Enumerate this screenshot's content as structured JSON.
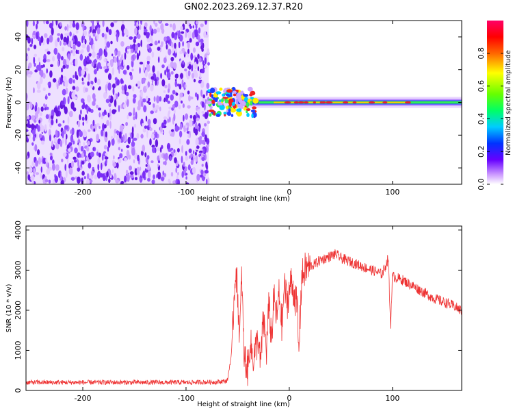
{
  "title": "GN02.2023.269.12.37.R20",
  "colors": {
    "snr_line": "#ee3333",
    "noise_purple": "#6a22dd",
    "axis": "#000000",
    "background": "#ffffff"
  },
  "chart_data": [
    {
      "type": "heatmap",
      "name": "spectrogram",
      "xlabel": "Height of straight line (km)",
      "ylabel": "Frequency (Hz)",
      "xlim": [
        -255,
        167
      ],
      "ylim": [
        -50,
        50
      ],
      "xticks": [
        -200,
        -100,
        0,
        100
      ],
      "yticks": [
        -40,
        -20,
        0,
        20,
        40
      ],
      "xtick_labels": [
        "-200",
        "-100",
        "0",
        "100"
      ],
      "ytick_labels": [
        "-40",
        "-20",
        "0",
        "20",
        "40"
      ],
      "noise_region_x": [
        -255,
        -78
      ],
      "signal_center_hz": 0,
      "colorbar": {
        "label": "Normalized spectral amplitude",
        "range": [
          0,
          1
        ],
        "ticks": [
          0.0,
          0.2,
          0.4,
          0.6,
          0.8
        ],
        "tick_labels": [
          "0.0",
          "0.2",
          "0.4",
          "0.6",
          "0.8"
        ],
        "colormap": [
          "#ffffff",
          "#cc99ff",
          "#6600ff",
          "#0033ff",
          "#00ccff",
          "#00ff66",
          "#66ff00",
          "#ffff00",
          "#ff6600",
          "#ff0000",
          "#ff0066"
        ]
      }
    },
    {
      "type": "line",
      "name": "snr",
      "xlabel": "Height of straight line (km)",
      "ylabel": "SNR (10 * v/v)",
      "xlim": [
        -255,
        167
      ],
      "ylim": [
        0,
        4100
      ],
      "xticks": [
        -200,
        -100,
        0,
        100
      ],
      "yticks": [
        0,
        1000,
        2000,
        3000,
        4000
      ],
      "xtick_labels": [
        "-200",
        "-100",
        "0",
        "100"
      ],
      "ytick_labels": [
        "0",
        "1000",
        "2000",
        "3000",
        "4000"
      ],
      "series": [
        {
          "name": "SNR",
          "x": [
            -255,
            -200,
            -150,
            -100,
            -70,
            -60,
            -56,
            -52,
            -50,
            -48,
            -46,
            -44,
            -42,
            -40,
            -38,
            -35,
            -32,
            -30,
            -28,
            -25,
            -22,
            -20,
            -17,
            -15,
            -12,
            -10,
            -7,
            -5,
            -2,
            0,
            2,
            5,
            8,
            9,
            12,
            15,
            20,
            25,
            30,
            35,
            40,
            45,
            50,
            55,
            60,
            70,
            80,
            90,
            96,
            98,
            100,
            110,
            120,
            130,
            140,
            150,
            160,
            167
          ],
          "y": [
            200,
            200,
            200,
            200,
            210,
            240,
            900,
            3100,
            2400,
            1300,
            2900,
            900,
            700,
            500,
            1200,
            800,
            1100,
            1300,
            600,
            1800,
            1000,
            2100,
            1300,
            2300,
            1800,
            2400,
            1600,
            2600,
            2200,
            2500,
            2700,
            2400,
            2000,
            900,
            2800,
            3000,
            3100,
            3150,
            3250,
            3300,
            3350,
            3400,
            3300,
            3250,
            3200,
            3100,
            3000,
            2900,
            3300,
            1600,
            2850,
            2750,
            2600,
            2450,
            2300,
            2200,
            2100,
            1980
          ]
        }
      ]
    }
  ]
}
